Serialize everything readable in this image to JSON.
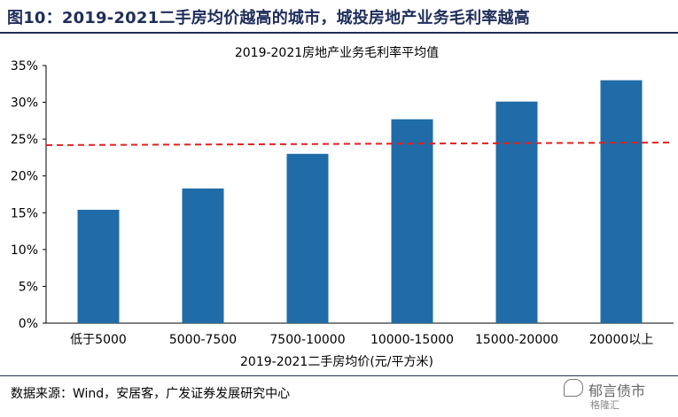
{
  "figure_title": "图10：2019-2021二手房均价越高的城市，城投房地产业务毛利率越高",
  "source_note": "数据来源：Wind，安居客，广发证券发展研究中心",
  "watermark": {
    "name": "郁言债市",
    "sub": "格隆汇"
  },
  "colors": {
    "bar": "#1f6ca8",
    "reference_line": "#e02020",
    "title": "#1f2d5a"
  },
  "chart_data": {
    "type": "bar",
    "title": "2019-2021房地产业务毛利率平均值",
    "xlabel": "2019-2021二手房均价(元/平方米)",
    "ylabel": "",
    "categories": [
      "低于5000",
      "5000-7500",
      "7500-10000",
      "10000-15000",
      "15000-20000",
      "20000以上"
    ],
    "values": [
      15.4,
      18.3,
      23.0,
      27.7,
      30.1,
      33.0
    ],
    "ylim": [
      0,
      35
    ],
    "yticks": [
      "0%",
      "5%",
      "10%",
      "15%",
      "20%",
      "25%",
      "30%",
      "35%"
    ],
    "reference_line": {
      "value": 24.3,
      "style": "dashed"
    },
    "grid": false
  }
}
